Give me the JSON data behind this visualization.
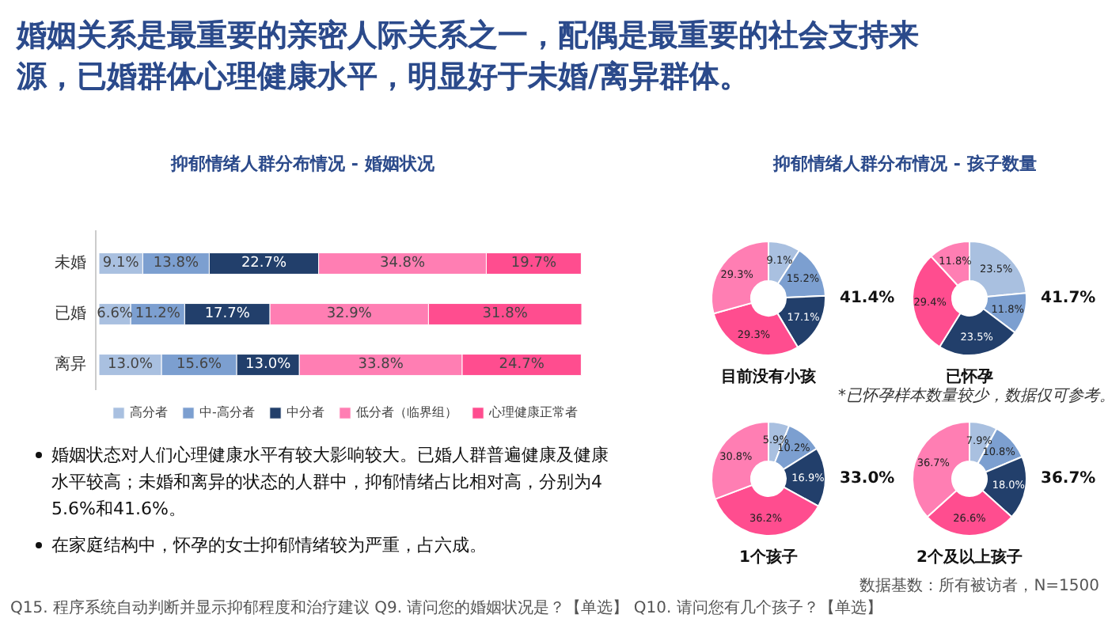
{
  "chart_data": [
    {
      "type": "bar",
      "title": "抑郁情绪人群分布情况  -  婚姻状况",
      "orientation": "horizontal",
      "stacked": true,
      "legend": "bottom",
      "categories": [
        "未婚",
        "已婚",
        "离异"
      ],
      "series": [
        {
          "name": "高分者",
          "color": "#a9c0e0",
          "values": [
            9.1,
            6.6,
            13.0
          ],
          "value_labels": [
            "9.1%",
            "6.6%",
            "13.0%"
          ]
        },
        {
          "name": "中-高分者",
          "color": "#7c9fd0",
          "values": [
            13.8,
            11.2,
            15.6
          ],
          "value_labels": [
            "13.8%",
            "11.2%",
            "15.6%"
          ]
        },
        {
          "name": "中分者",
          "color": "#223f6b",
          "values": [
            22.7,
            17.7,
            13.0
          ],
          "value_labels": [
            "22.7%",
            "17.7%",
            "13.0%"
          ]
        },
        {
          "name": "低分者（临界组）",
          "color": "#ff7eb3",
          "values": [
            34.8,
            32.9,
            33.8
          ],
          "value_labels": [
            "34.8%",
            "32.9%",
            "33.8%"
          ]
        },
        {
          "name": "心理健康正常者",
          "color": "#ff4d8f",
          "values": [
            19.7,
            31.8,
            24.7
          ],
          "value_labels": [
            "19.7%",
            "31.8%",
            "24.7%"
          ]
        }
      ]
    },
    {
      "type": "donut",
      "title": "目前没有小孩",
      "categories": [
        null,
        null,
        null,
        null,
        null
      ],
      "values": [
        9.1,
        15.2,
        17.1,
        29.3,
        29.3
      ],
      "colors": [
        "#a9c0e0",
        "#7c9fd0",
        "#223f6b",
        "#ff4d8f",
        "#ff7eb3"
      ],
      "value_labels": [
        "9.1%",
        "15.2%",
        "17.1%",
        "29.3%",
        "29.3%"
      ],
      "annotations": [
        "41.4%"
      ]
    },
    {
      "type": "donut",
      "title": "已怀孕",
      "categories": [
        null,
        null,
        null,
        null,
        null
      ],
      "values": [
        23.5,
        11.8,
        23.5,
        29.4,
        11.8
      ],
      "colors": [
        "#a9c0e0",
        "#7c9fd0",
        "#223f6b",
        "#ff4d8f",
        "#ff7eb3"
      ],
      "value_labels": [
        "23.5%",
        "11.8%",
        "23.5%",
        "29.4%",
        "11.8%"
      ],
      "annotations": [
        "41.7%",
        "*已怀孕样本数量较少，数据仅可参考。"
      ]
    },
    {
      "type": "donut",
      "title": "1个孩子",
      "categories": [
        null,
        null,
        null,
        null,
        null
      ],
      "values": [
        5.9,
        10.2,
        16.9,
        36.2,
        30.8
      ],
      "colors": [
        "#a9c0e0",
        "#7c9fd0",
        "#223f6b",
        "#ff4d8f",
        "#ff7eb3"
      ],
      "value_labels": [
        "5.9%",
        "10.2%",
        "16.9%",
        "36.2%",
        "30.8%"
      ],
      "annotations": [
        "33.0%"
      ]
    },
    {
      "type": "donut",
      "title": "2个及以上孩子",
      "categories": [
        null,
        null,
        null,
        null,
        null
      ],
      "values": [
        7.9,
        10.8,
        18.0,
        26.6,
        36.7
      ],
      "colors": [
        "#a9c0e0",
        "#7c9fd0",
        "#223f6b",
        "#ff4d8f",
        "#ff7eb3"
      ],
      "value_labels": [
        "7.9%",
        "10.8%",
        "18.0%",
        "26.6%",
        "36.7%"
      ],
      "annotations": [
        "36.7%"
      ]
    },
    {
      "type": "other",
      "title": "婚姻关系是最重要的亲密人际关系之一，配偶是最重要的社会支持来源，已婚群体心理健康水平，明显好于未婚/离异群体。",
      "subtitle": "抑郁情绪人群分布情况  -  孩子数量",
      "annotations": [
        "婚姻状态对人们心理健康水平有较大影响较大。已婚人群普遍健康及健康水平较高；未婚和离异的状态的人群中，抑郁情绪占比相对高，分别为45.6%和41.6%。",
        "在家庭结构中，怀孕的女士抑郁情绪较为严重，占六成。",
        "Q15. 程序系统自动判断并显示抑郁程度和治疗建议  Q9. 请问您的婚姻状况是？【单选】  Q10. 请问您有几个孩子？【单选】",
        "数据基数：所有被访者，N=1500"
      ]
    }
  ]
}
